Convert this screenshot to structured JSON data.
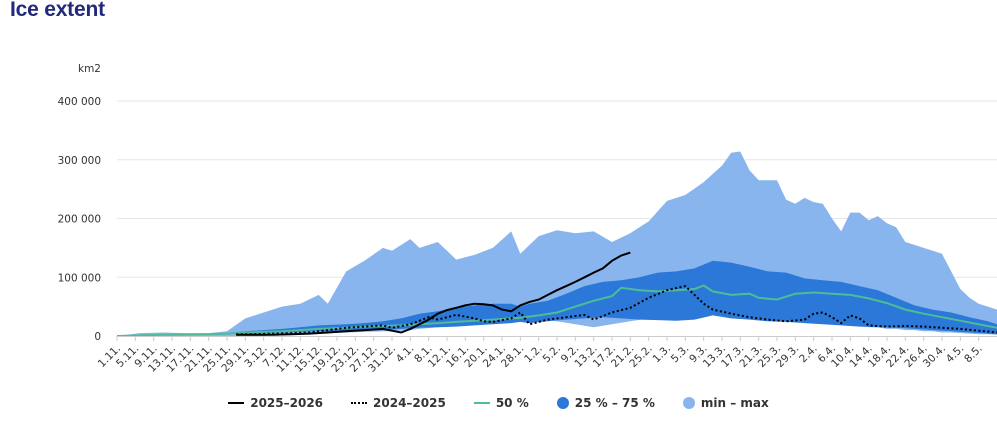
{
  "page": {
    "title": "Ice extent"
  },
  "colors": {
    "minmax": "#88b5ee",
    "iqr": "#2b78d8",
    "median": "#4cbd96",
    "current": "#000000",
    "previous": "#000000",
    "grid": "#e6e6e6"
  },
  "chart_data": {
    "type": "area",
    "title": "Ice extent",
    "ylabel": "km2",
    "ylim": [
      0,
      400000
    ],
    "grid": true,
    "legend_position": "bottom-center",
    "y_tick_labels": [
      "0",
      "100 000",
      "200 000",
      "300 000",
      "400 000"
    ],
    "y_ticks": [
      0,
      100000,
      200000,
      300000,
      400000
    ],
    "x_tick_labels": [
      "1.11.",
      "5.11.",
      "9.11.",
      "13.11.",
      "17.11.",
      "21.11.",
      "25.11.",
      "29.11.",
      "3.12.",
      "7.12.",
      "11.12.",
      "15.12.",
      "19.12.",
      "23.12.",
      "27.12.",
      "31.12.",
      "4.1.",
      "8.1.",
      "12.1.",
      "16.1.",
      "20.1.",
      "24.1.",
      "28.1.",
      "1.2.",
      "5.2.",
      "9.2.",
      "13.2.",
      "17.2.",
      "21.2.",
      "25.2.",
      "1.3.",
      "5.3.",
      "9.3.",
      "13.3.",
      "17.3.",
      "21.3.",
      "25.3.",
      "29.3.",
      "2.4.",
      "6.4.",
      "10.4.",
      "14.4.",
      "18.4.",
      "22.4.",
      "26.4.",
      "30.4.",
      "4.5.",
      "8.5."
    ],
    "x_tick_step_days": 4,
    "x_day_count": 193,
    "legend": [
      {
        "name": "2025–2026",
        "style": "solid-black"
      },
      {
        "name": "2024–2025",
        "style": "dotted-black"
      },
      {
        "name": "50 %",
        "style": "solid-green"
      },
      {
        "name": "25 % – 75 %",
        "style": "dark-blue-fill"
      },
      {
        "name": "min – max",
        "style": "light-blue-fill"
      }
    ],
    "series": [
      {
        "name": "min – max",
        "kind": "band",
        "points": [
          [
            0,
            0,
            0
          ],
          [
            5,
            0,
            5000
          ],
          [
            10,
            0,
            6000
          ],
          [
            15,
            0,
            5000
          ],
          [
            20,
            0,
            5000
          ],
          [
            24,
            0,
            8000
          ],
          [
            28,
            0,
            30000
          ],
          [
            32,
            0,
            40000
          ],
          [
            36,
            2000,
            50000
          ],
          [
            40,
            2000,
            55000
          ],
          [
            44,
            4000,
            70000
          ],
          [
            46,
            5000,
            55000
          ],
          [
            50,
            6000,
            110000
          ],
          [
            54,
            7000,
            128000
          ],
          [
            58,
            8000,
            150000
          ],
          [
            60,
            8000,
            145000
          ],
          [
            64,
            10000,
            165000
          ],
          [
            66,
            12000,
            150000
          ],
          [
            70,
            15000,
            160000
          ],
          [
            74,
            18000,
            130000
          ],
          [
            78,
            20000,
            138000
          ],
          [
            82,
            25000,
            150000
          ],
          [
            86,
            35000,
            178000
          ],
          [
            88,
            40000,
            140000
          ],
          [
            92,
            30000,
            170000
          ],
          [
            96,
            25000,
            180000
          ],
          [
            100,
            20000,
            175000
          ],
          [
            104,
            15000,
            178000
          ],
          [
            108,
            20000,
            160000
          ],
          [
            112,
            25000,
            175000
          ],
          [
            116,
            30000,
            195000
          ],
          [
            120,
            40000,
            230000
          ],
          [
            124,
            50000,
            240000
          ],
          [
            128,
            45000,
            262000
          ],
          [
            132,
            40000,
            290000
          ],
          [
            134,
            45000,
            312000
          ],
          [
            136,
            48000,
            314000
          ],
          [
            138,
            45000,
            282000
          ],
          [
            140,
            40000,
            265000
          ],
          [
            144,
            35000,
            265000
          ],
          [
            146,
            32000,
            232000
          ],
          [
            148,
            30000,
            225000
          ],
          [
            150,
            28000,
            235000
          ],
          [
            152,
            25000,
            228000
          ],
          [
            154,
            25000,
            225000
          ],
          [
            156,
            22000,
            200000
          ],
          [
            158,
            20000,
            178000
          ],
          [
            160,
            20000,
            210000
          ],
          [
            162,
            18000,
            210000
          ],
          [
            164,
            15000,
            197000
          ],
          [
            166,
            15000,
            204000
          ],
          [
            168,
            12000,
            192000
          ],
          [
            170,
            12000,
            185000
          ],
          [
            172,
            10000,
            160000
          ],
          [
            174,
            10000,
            155000
          ],
          [
            176,
            8000,
            150000
          ],
          [
            178,
            8000,
            145000
          ],
          [
            180,
            6000,
            140000
          ],
          [
            182,
            6000,
            110000
          ],
          [
            184,
            5000,
            80000
          ],
          [
            186,
            4000,
            65000
          ],
          [
            188,
            3000,
            55000
          ],
          [
            190,
            3000,
            50000
          ],
          [
            192,
            2000,
            45000
          ]
        ]
      },
      {
        "name": "25 % – 75 %",
        "kind": "band",
        "points": [
          [
            0,
            0,
            0
          ],
          [
            10,
            2000,
            3000
          ],
          [
            20,
            2000,
            3000
          ],
          [
            24,
            3000,
            5000
          ],
          [
            28,
            4000,
            8000
          ],
          [
            32,
            5000,
            10000
          ],
          [
            36,
            6000,
            12000
          ],
          [
            40,
            7000,
            15000
          ],
          [
            44,
            8000,
            18000
          ],
          [
            50,
            8000,
            20000
          ],
          [
            54,
            9000,
            22000
          ],
          [
            58,
            10000,
            25000
          ],
          [
            62,
            12000,
            30000
          ],
          [
            66,
            14000,
            38000
          ],
          [
            70,
            15000,
            42000
          ],
          [
            74,
            16000,
            48000
          ],
          [
            78,
            18000,
            52000
          ],
          [
            82,
            20000,
            55000
          ],
          [
            86,
            22000,
            55000
          ],
          [
            88,
            24000,
            50000
          ],
          [
            90,
            22000,
            55000
          ],
          [
            94,
            25000,
            60000
          ],
          [
            98,
            28000,
            72000
          ],
          [
            102,
            30000,
            85000
          ],
          [
            106,
            32000,
            92000
          ],
          [
            110,
            30000,
            95000
          ],
          [
            114,
            28000,
            100000
          ],
          [
            118,
            27000,
            108000
          ],
          [
            122,
            26000,
            110000
          ],
          [
            126,
            28000,
            115000
          ],
          [
            130,
            35000,
            128000
          ],
          [
            134,
            30000,
            125000
          ],
          [
            138,
            28000,
            118000
          ],
          [
            142,
            25000,
            110000
          ],
          [
            146,
            24000,
            108000
          ],
          [
            150,
            22000,
            98000
          ],
          [
            154,
            20000,
            95000
          ],
          [
            158,
            18000,
            92000
          ],
          [
            162,
            16000,
            85000
          ],
          [
            166,
            15000,
            78000
          ],
          [
            170,
            14000,
            65000
          ],
          [
            174,
            12000,
            52000
          ],
          [
            178,
            10000,
            45000
          ],
          [
            182,
            8000,
            40000
          ],
          [
            186,
            6000,
            32000
          ],
          [
            190,
            4000,
            25000
          ],
          [
            192,
            3000,
            20000
          ]
        ]
      },
      {
        "name": "50 %",
        "kind": "line",
        "points": [
          [
            0,
            0
          ],
          [
            10,
            2000
          ],
          [
            20,
            3000
          ],
          [
            24,
            4000
          ],
          [
            28,
            6000
          ],
          [
            32,
            7000
          ],
          [
            36,
            8000
          ],
          [
            40,
            10000
          ],
          [
            44,
            12000
          ],
          [
            50,
            14000
          ],
          [
            54,
            16000
          ],
          [
            58,
            17000
          ],
          [
            62,
            18000
          ],
          [
            66,
            20000
          ],
          [
            70,
            22000
          ],
          [
            74,
            24000
          ],
          [
            78,
            26000
          ],
          [
            82,
            28000
          ],
          [
            86,
            30000
          ],
          [
            88,
            31000
          ],
          [
            92,
            35000
          ],
          [
            96,
            40000
          ],
          [
            100,
            50000
          ],
          [
            104,
            60000
          ],
          [
            108,
            68000
          ],
          [
            110,
            82000
          ],
          [
            114,
            78000
          ],
          [
            118,
            76000
          ],
          [
            122,
            78000
          ],
          [
            126,
            80000
          ],
          [
            128,
            86000
          ],
          [
            130,
            76000
          ],
          [
            134,
            70000
          ],
          [
            138,
            72000
          ],
          [
            140,
            65000
          ],
          [
            144,
            62000
          ],
          [
            148,
            72000
          ],
          [
            152,
            74000
          ],
          [
            156,
            72000
          ],
          [
            160,
            70000
          ],
          [
            164,
            64000
          ],
          [
            168,
            56000
          ],
          [
            172,
            45000
          ],
          [
            176,
            38000
          ],
          [
            180,
            32000
          ],
          [
            184,
            26000
          ],
          [
            188,
            20000
          ],
          [
            192,
            14000
          ]
        ]
      },
      {
        "name": "2024–2025",
        "kind": "line",
        "dashed": true,
        "points": [
          [
            26,
            3000
          ],
          [
            30,
            3000
          ],
          [
            34,
            4000
          ],
          [
            38,
            5000
          ],
          [
            42,
            6000
          ],
          [
            46,
            10000
          ],
          [
            50,
            14000
          ],
          [
            54,
            16000
          ],
          [
            58,
            18000
          ],
          [
            60,
            14000
          ],
          [
            64,
            20000
          ],
          [
            68,
            32000
          ],
          [
            70,
            28000
          ],
          [
            74,
            36000
          ],
          [
            78,
            30000
          ],
          [
            80,
            25000
          ],
          [
            82,
            24000
          ],
          [
            86,
            30000
          ],
          [
            88,
            40000
          ],
          [
            90,
            20000
          ],
          [
            94,
            28000
          ],
          [
            98,
            32000
          ],
          [
            102,
            36000
          ],
          [
            104,
            28000
          ],
          [
            108,
            40000
          ],
          [
            112,
            48000
          ],
          [
            116,
            65000
          ],
          [
            120,
            78000
          ],
          [
            124,
            85000
          ],
          [
            126,
            70000
          ],
          [
            128,
            55000
          ],
          [
            130,
            45000
          ],
          [
            134,
            38000
          ],
          [
            138,
            32000
          ],
          [
            142,
            28000
          ],
          [
            146,
            25000
          ],
          [
            150,
            28000
          ],
          [
            152,
            38000
          ],
          [
            154,
            40000
          ],
          [
            156,
            32000
          ],
          [
            158,
            22000
          ],
          [
            160,
            35000
          ],
          [
            162,
            30000
          ],
          [
            164,
            18000
          ],
          [
            168,
            16000
          ],
          [
            172,
            17000
          ],
          [
            176,
            16000
          ],
          [
            180,
            14000
          ],
          [
            184,
            12000
          ],
          [
            188,
            9000
          ],
          [
            192,
            6000
          ]
        ]
      },
      {
        "name": "2025–2026",
        "kind": "line",
        "dashed": false,
        "points": [
          [
            26,
            2000
          ],
          [
            30,
            2000
          ],
          [
            34,
            2000
          ],
          [
            38,
            3000
          ],
          [
            42,
            4000
          ],
          [
            46,
            6000
          ],
          [
            50,
            8000
          ],
          [
            54,
            10000
          ],
          [
            58,
            12000
          ],
          [
            60,
            9000
          ],
          [
            62,
            6000
          ],
          [
            64,
            12000
          ],
          [
            66,
            20000
          ],
          [
            68,
            28000
          ],
          [
            70,
            38000
          ],
          [
            72,
            44000
          ],
          [
            74,
            48000
          ],
          [
            76,
            52000
          ],
          [
            78,
            55000
          ],
          [
            80,
            54000
          ],
          [
            82,
            52000
          ],
          [
            84,
            45000
          ],
          [
            86,
            42000
          ],
          [
            88,
            52000
          ],
          [
            90,
            58000
          ],
          [
            92,
            62000
          ],
          [
            94,
            70000
          ],
          [
            96,
            78000
          ],
          [
            98,
            85000
          ],
          [
            100,
            92000
          ],
          [
            102,
            100000
          ],
          [
            104,
            108000
          ],
          [
            106,
            115000
          ],
          [
            108,
            128000
          ],
          [
            110,
            137000
          ],
          [
            112,
            142000
          ]
        ]
      }
    ]
  }
}
